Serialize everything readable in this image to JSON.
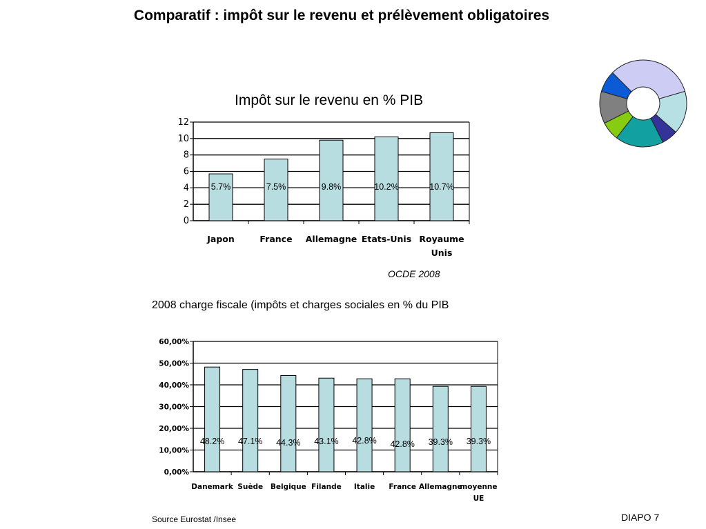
{
  "slide": {
    "title": "Comparatif : impôt sur le revenu et prélèvement obligatoires",
    "footer_source": "Source Eurostat /Insee",
    "slide_number": "DIAPO 7"
  },
  "colors": {
    "bar_fill": "#b8dde1",
    "bar_stroke": "#000000",
    "grid": "#000000",
    "donut": [
      "#ccccf5",
      "#b6e0e4",
      "#333399",
      "#13a0a0",
      "#88cc11",
      "#808080",
      "#0b5bd6"
    ]
  },
  "chart_data": [
    {
      "type": "bar",
      "title": "Impôt sur le revenu en % PIB",
      "source_note": "OCDE 2008",
      "categories": [
        "Japon",
        "France",
        "Allemagne",
        "Etats-Unis",
        "Royaume Unis"
      ],
      "values": [
        5.7,
        7.5,
        9.8,
        10.2,
        10.7
      ],
      "data_labels": [
        "5.7%",
        "7.5%",
        "9.8%",
        "10.2%",
        "10.7%"
      ],
      "ylim": [
        0,
        12
      ],
      "yticks": [
        "0",
        "2",
        "4",
        "6",
        "8",
        "10",
        "12"
      ],
      "grid": true,
      "xlabel": "",
      "ylabel": ""
    },
    {
      "type": "bar",
      "title": "2008 charge fiscale (impôts et charges sociales en % du PIB",
      "categories": [
        "Danemark",
        "Suède",
        "Belgique",
        "Filande",
        "Italie",
        "France",
        "Allemagne",
        "moyenne UE"
      ],
      "values": [
        48.2,
        47.1,
        44.3,
        43.1,
        42.8,
        42.8,
        39.3,
        39.3
      ],
      "data_labels": [
        "48.2%",
        "47.1%",
        "44.3%",
        "43.1%",
        "42.8%",
        "42.8%",
        "39.3%",
        "39.3%"
      ],
      "ylim": [
        0,
        60
      ],
      "yticks": [
        "0,00%",
        "10,00%",
        "20,00%",
        "30,00%",
        "40,00%",
        "50,00%",
        "60,00%"
      ],
      "grid": true,
      "xlabel": "",
      "ylabel": ""
    },
    {
      "type": "pie",
      "values": [
        33,
        16,
        6,
        18,
        7,
        12,
        8
      ]
    }
  ]
}
